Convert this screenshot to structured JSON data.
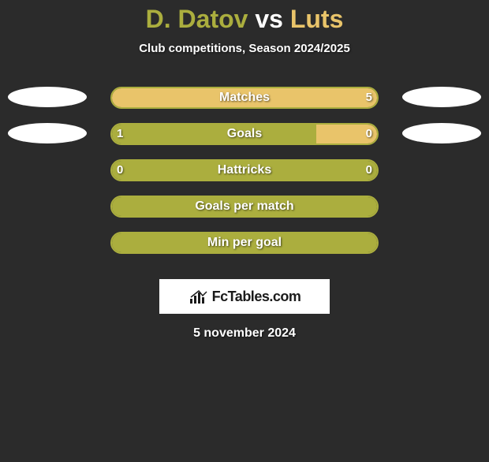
{
  "background_color": "#2b2b2b",
  "title": {
    "player1": "D. Datov",
    "vs": " vs ",
    "player2": "Luts",
    "color_player1": "#abae3e",
    "color_vs": "#ffffff",
    "color_player2": "#e9c46a",
    "fontsize": 32
  },
  "subtitle": {
    "text": "Club competitions, Season 2024/2025",
    "color": "#ffffff",
    "fontsize": 15
  },
  "bar_style": {
    "track_width": 340,
    "track_height": 28,
    "border_radius": 14,
    "left_color": "#abae3e",
    "right_color": "#e9c46a",
    "label_color": "#ffffff",
    "label_fontsize": 16
  },
  "ellipse_color": "#ffffff",
  "rows": [
    {
      "label": "Matches",
      "left_val": "",
      "right_val": "5",
      "left_pct": 0,
      "right_pct": 100,
      "show_left_ellipse": true,
      "show_right_ellipse": true
    },
    {
      "label": "Goals",
      "left_val": "1",
      "right_val": "0",
      "left_pct": 77,
      "right_pct": 23,
      "show_left_ellipse": true,
      "show_right_ellipse": true
    },
    {
      "label": "Hattricks",
      "left_val": "0",
      "right_val": "0",
      "left_pct": 100,
      "right_pct": 0,
      "show_left_ellipse": false,
      "show_right_ellipse": false
    },
    {
      "label": "Goals per match",
      "left_val": "",
      "right_val": "",
      "left_pct": 100,
      "right_pct": 0,
      "show_left_ellipse": false,
      "show_right_ellipse": false
    },
    {
      "label": "Min per goal",
      "left_val": "",
      "right_val": "",
      "left_pct": 100,
      "right_pct": 0,
      "show_left_ellipse": false,
      "show_right_ellipse": false
    }
  ],
  "logo": {
    "text": "FcTables.com",
    "bg": "#ffffff",
    "text_color": "#1b1b1b",
    "icon_color": "#1b1b1b"
  },
  "date": {
    "text": "5 november 2024",
    "color": "#ffffff",
    "fontsize": 16
  }
}
